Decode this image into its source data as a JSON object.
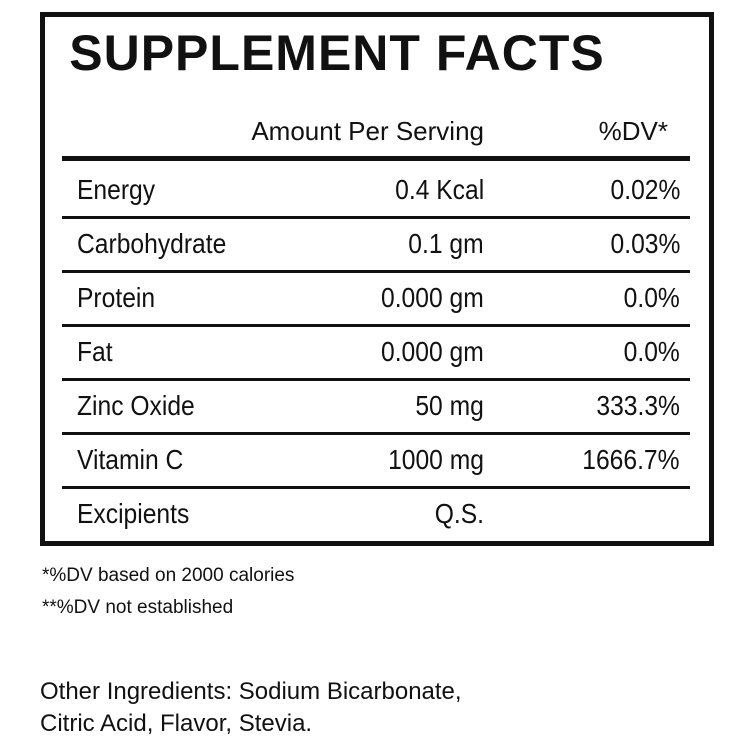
{
  "title": "SUPPLEMENT FACTS",
  "table": {
    "headers": [
      "Amount Per Serving",
      "%DV*"
    ],
    "rows": [
      [
        "Energy",
        "0.4 Kcal",
        "0.02%"
      ],
      [
        "Carbohydrate",
        "0.1 gm",
        "0.03%"
      ],
      [
        "Protein",
        "0.000 gm",
        "0.0%"
      ],
      [
        "Fat",
        "0.000 gm",
        "0.0%"
      ],
      [
        "Zinc Oxide",
        "50 mg",
        "333.3%"
      ],
      [
        "Vitamin C",
        "1000 mg",
        "1666.7%"
      ],
      [
        "Excipients",
        "Q.S."
      ]
    ]
  },
  "footnotes": [
    "*%DV based on 2000 calories",
    "**%DV not established"
  ],
  "other_ingredients": [
    "Other Ingredients: Sodium Bicarbonate,",
    "Citric Acid, Flavor, Stevia."
  ]
}
